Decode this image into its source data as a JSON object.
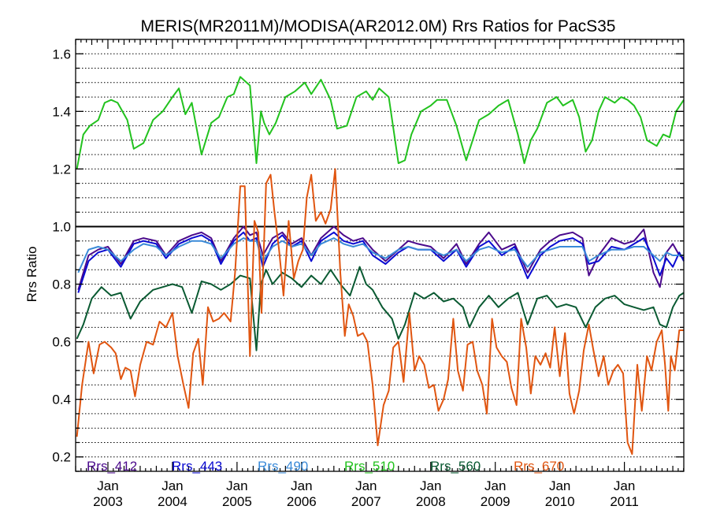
{
  "chart_data": {
    "type": "line",
    "title": "MERIS(MR2011M)/MODISA(AR2012.0M)  Rrs Ratios for PacS35",
    "ylabel": "Rrs Ratio",
    "xlabel": "",
    "ylim": [
      0.15,
      1.65
    ],
    "xlim": [
      2002.5,
      2011.92
    ],
    "y_ticks": [
      0.2,
      0.4,
      0.6,
      0.8,
      1.0,
      1.2,
      1.4,
      1.6
    ],
    "y_tick_labels": [
      "0.2",
      "0.4",
      "0.6",
      "0.8",
      "1.0",
      "1.2",
      "1.4",
      "1.6"
    ],
    "x_ticks": [
      {
        "x": 2003.0,
        "month": "Jan",
        "year": "2003"
      },
      {
        "x": 2004.0,
        "month": "Jan",
        "year": "2004"
      },
      {
        "x": 2005.0,
        "month": "Jan",
        "year": "2005"
      },
      {
        "x": 2006.0,
        "month": "Jan",
        "year": "2006"
      },
      {
        "x": 2007.0,
        "month": "Jan",
        "year": "2007"
      },
      {
        "x": 2008.0,
        "month": "Jan",
        "year": "2008"
      },
      {
        "x": 2009.0,
        "month": "Jan",
        "year": "2009"
      },
      {
        "x": 2010.0,
        "month": "Jan",
        "year": "2010"
      },
      {
        "x": 2011.0,
        "month": "Jan",
        "year": "2011"
      }
    ],
    "reference_line": 1.0,
    "grid": "horizontal dotted",
    "legend_position": "bottom inside plot",
    "series": [
      {
        "name": "Rrs_412",
        "color": "#4b0a8c",
        "x": [
          2002.54,
          2002.7,
          2002.85,
          2003.0,
          2003.2,
          2003.4,
          2003.55,
          2003.75,
          2003.9,
          2004.1,
          2004.3,
          2004.45,
          2004.6,
          2004.75,
          2004.95,
          2005.1,
          2005.2,
          2005.3,
          2005.4,
          2005.55,
          2005.7,
          2005.85,
          2006.0,
          2006.15,
          2006.3,
          2006.5,
          2006.65,
          2006.8,
          2006.95,
          2007.1,
          2007.3,
          2007.5,
          2007.65,
          2007.8,
          2008.0,
          2008.2,
          2008.4,
          2008.55,
          2008.75,
          2008.9,
          2009.1,
          2009.3,
          2009.5,
          2009.7,
          2009.85,
          2010.0,
          2010.2,
          2010.35,
          2010.45,
          2010.6,
          2010.8,
          2011.0,
          2011.15,
          2011.3,
          2011.45,
          2011.55,
          2011.65,
          2011.75,
          2011.85,
          2011.92
        ],
        "values": [
          0.78,
          0.9,
          0.92,
          0.93,
          0.87,
          0.95,
          0.96,
          0.95,
          0.9,
          0.95,
          0.97,
          0.98,
          0.96,
          0.88,
          0.96,
          1.0,
          0.97,
          0.98,
          0.9,
          0.96,
          0.98,
          0.94,
          0.96,
          0.9,
          0.96,
          1.0,
          0.97,
          0.95,
          0.96,
          0.92,
          0.88,
          0.92,
          0.95,
          0.94,
          0.93,
          0.89,
          0.94,
          0.87,
          0.94,
          0.98,
          0.92,
          0.94,
          0.84,
          0.92,
          0.95,
          0.97,
          0.98,
          0.96,
          0.83,
          0.9,
          0.96,
          0.94,
          0.95,
          0.99,
          0.84,
          0.79,
          0.91,
          0.94,
          0.9,
          0.89
        ]
      },
      {
        "name": "Rrs_443",
        "color": "#0a0ad2",
        "x": [
          2002.54,
          2002.7,
          2002.85,
          2003.0,
          2003.2,
          2003.4,
          2003.55,
          2003.75,
          2003.9,
          2004.1,
          2004.3,
          2004.45,
          2004.6,
          2004.75,
          2004.95,
          2005.1,
          2005.2,
          2005.3,
          2005.4,
          2005.55,
          2005.7,
          2005.85,
          2006.0,
          2006.15,
          2006.3,
          2006.5,
          2006.65,
          2006.8,
          2006.95,
          2007.1,
          2007.3,
          2007.5,
          2007.65,
          2007.8,
          2008.0,
          2008.2,
          2008.4,
          2008.55,
          2008.75,
          2008.9,
          2009.1,
          2009.3,
          2009.5,
          2009.7,
          2009.85,
          2010.0,
          2010.2,
          2010.35,
          2010.45,
          2010.6,
          2010.8,
          2011.0,
          2011.15,
          2011.3,
          2011.45,
          2011.55,
          2011.65,
          2011.75,
          2011.85,
          2011.92
        ],
        "values": [
          0.77,
          0.88,
          0.91,
          0.92,
          0.86,
          0.94,
          0.95,
          0.94,
          0.89,
          0.94,
          0.96,
          0.97,
          0.95,
          0.87,
          0.95,
          0.98,
          0.95,
          0.96,
          0.86,
          0.94,
          0.97,
          0.93,
          0.95,
          0.88,
          0.95,
          0.98,
          0.95,
          0.94,
          0.95,
          0.9,
          0.87,
          0.91,
          0.93,
          0.92,
          0.92,
          0.88,
          0.92,
          0.86,
          0.93,
          0.95,
          0.9,
          0.93,
          0.82,
          0.9,
          0.93,
          0.95,
          0.96,
          0.94,
          0.87,
          0.88,
          0.93,
          0.92,
          0.94,
          0.96,
          0.89,
          0.83,
          0.89,
          0.86,
          0.91,
          0.88
        ]
      },
      {
        "name": "Rrs_490",
        "color": "#3a8ad8",
        "x": [
          2002.54,
          2002.7,
          2002.85,
          2003.0,
          2003.2,
          2003.4,
          2003.55,
          2003.75,
          2003.9,
          2004.1,
          2004.3,
          2004.45,
          2004.6,
          2004.75,
          2004.95,
          2005.1,
          2005.2,
          2005.3,
          2005.4,
          2005.55,
          2005.7,
          2005.85,
          2006.0,
          2006.15,
          2006.3,
          2006.5,
          2006.65,
          2006.8,
          2006.95,
          2007.1,
          2007.3,
          2007.5,
          2007.65,
          2007.8,
          2008.0,
          2008.2,
          2008.4,
          2008.55,
          2008.75,
          2008.9,
          2009.1,
          2009.3,
          2009.5,
          2009.7,
          2009.85,
          2010.0,
          2010.2,
          2010.35,
          2010.45,
          2010.6,
          2010.8,
          2011.0,
          2011.15,
          2011.3,
          2011.45,
          2011.55,
          2011.65,
          2011.75,
          2011.85,
          2011.92
        ],
        "values": [
          0.84,
          0.92,
          0.93,
          0.92,
          0.88,
          0.92,
          0.94,
          0.93,
          0.9,
          0.93,
          0.95,
          0.95,
          0.94,
          0.89,
          0.94,
          0.96,
          0.95,
          0.95,
          0.88,
          0.93,
          0.95,
          0.93,
          0.94,
          0.9,
          0.94,
          0.96,
          0.94,
          0.93,
          0.94,
          0.91,
          0.89,
          0.92,
          0.93,
          0.92,
          0.92,
          0.9,
          0.92,
          0.88,
          0.92,
          0.93,
          0.91,
          0.92,
          0.86,
          0.91,
          0.92,
          0.93,
          0.93,
          0.93,
          0.88,
          0.9,
          0.92,
          0.92,
          0.93,
          0.93,
          0.9,
          0.88,
          0.91,
          0.9,
          0.9,
          0.9
        ]
      },
      {
        "name": "Rrs_510",
        "color": "#22c21e",
        "x": [
          2002.52,
          2002.62,
          2002.72,
          2002.85,
          2002.95,
          2003.05,
          2003.15,
          2003.3,
          2003.4,
          2003.55,
          2003.7,
          2003.85,
          2004.0,
          2004.1,
          2004.2,
          2004.3,
          2004.45,
          2004.6,
          2004.72,
          2004.85,
          2004.95,
          2005.05,
          2005.2,
          2005.3,
          2005.37,
          2005.42,
          2005.5,
          2005.6,
          2005.75,
          2005.9,
          2006.05,
          2006.15,
          2006.3,
          2006.45,
          2006.55,
          2006.7,
          2006.85,
          2007.0,
          2007.1,
          2007.2,
          2007.35,
          2007.5,
          2007.6,
          2007.7,
          2007.85,
          2008.0,
          2008.1,
          2008.25,
          2008.4,
          2008.55,
          2008.65,
          2008.75,
          2008.9,
          2009.05,
          2009.2,
          2009.35,
          2009.45,
          2009.55,
          2009.65,
          2009.8,
          2009.95,
          2010.05,
          2010.2,
          2010.3,
          2010.4,
          2010.5,
          2010.6,
          2010.7,
          2010.85,
          2010.95,
          2011.05,
          2011.15,
          2011.25,
          2011.35,
          2011.5,
          2011.6,
          2011.7,
          2011.8,
          2011.92
        ],
        "values": [
          1.2,
          1.32,
          1.35,
          1.37,
          1.43,
          1.44,
          1.43,
          1.37,
          1.27,
          1.29,
          1.37,
          1.4,
          1.45,
          1.48,
          1.39,
          1.43,
          1.25,
          1.36,
          1.38,
          1.45,
          1.46,
          1.52,
          1.49,
          1.22,
          1.4,
          1.36,
          1.32,
          1.36,
          1.45,
          1.47,
          1.5,
          1.46,
          1.51,
          1.44,
          1.34,
          1.35,
          1.45,
          1.47,
          1.44,
          1.48,
          1.45,
          1.22,
          1.23,
          1.32,
          1.4,
          1.42,
          1.44,
          1.44,
          1.35,
          1.23,
          1.3,
          1.37,
          1.39,
          1.42,
          1.44,
          1.32,
          1.22,
          1.3,
          1.34,
          1.43,
          1.45,
          1.42,
          1.44,
          1.38,
          1.26,
          1.3,
          1.4,
          1.45,
          1.43,
          1.45,
          1.44,
          1.42,
          1.38,
          1.3,
          1.28,
          1.32,
          1.31,
          1.4,
          1.44
        ]
      },
      {
        "name": "Rrs_560",
        "color": "#0a5a32",
        "x": [
          2002.52,
          2002.62,
          2002.75,
          2002.9,
          2003.05,
          2003.2,
          2003.35,
          2003.5,
          2003.7,
          2003.85,
          2004.0,
          2004.15,
          2004.3,
          2004.45,
          2004.6,
          2004.75,
          2004.9,
          2005.05,
          2005.2,
          2005.3,
          2005.37,
          2005.45,
          2005.55,
          2005.7,
          2005.85,
          2006.0,
          2006.15,
          2006.3,
          2006.45,
          2006.6,
          2006.75,
          2006.9,
          2007.0,
          2007.1,
          2007.25,
          2007.4,
          2007.5,
          2007.6,
          2007.75,
          2007.9,
          2008.05,
          2008.2,
          2008.35,
          2008.5,
          2008.6,
          2008.75,
          2008.9,
          2009.05,
          2009.2,
          2009.35,
          2009.5,
          2009.65,
          2009.8,
          2009.95,
          2010.1,
          2010.25,
          2010.4,
          2010.55,
          2010.7,
          2010.85,
          2011.0,
          2011.15,
          2011.3,
          2011.45,
          2011.55,
          2011.65,
          2011.75,
          2011.85,
          2011.92
        ],
        "values": [
          0.61,
          0.66,
          0.75,
          0.79,
          0.76,
          0.77,
          0.68,
          0.74,
          0.78,
          0.79,
          0.8,
          0.79,
          0.7,
          0.81,
          0.8,
          0.78,
          0.8,
          0.83,
          0.82,
          0.57,
          0.8,
          0.85,
          0.8,
          0.84,
          0.82,
          0.79,
          0.83,
          0.8,
          0.85,
          0.8,
          0.76,
          0.86,
          0.8,
          0.78,
          0.72,
          0.68,
          0.61,
          0.66,
          0.77,
          0.75,
          0.77,
          0.74,
          0.75,
          0.72,
          0.65,
          0.72,
          0.76,
          0.72,
          0.75,
          0.77,
          0.66,
          0.75,
          0.76,
          0.72,
          0.73,
          0.72,
          0.65,
          0.72,
          0.75,
          0.76,
          0.73,
          0.72,
          0.71,
          0.72,
          0.66,
          0.65,
          0.72,
          0.76,
          0.77
        ]
      },
      {
        "name": "Rrs_670",
        "color": "#e05510",
        "x": [
          2002.52,
          2002.6,
          2002.7,
          2002.78,
          2002.87,
          2002.95,
          2003.05,
          2003.12,
          2003.2,
          2003.27,
          2003.35,
          2003.42,
          2003.5,
          2003.6,
          2003.7,
          2003.8,
          2003.9,
          2004.0,
          2004.08,
          2004.17,
          2004.25,
          2004.32,
          2004.4,
          2004.47,
          2004.55,
          2004.63,
          2004.72,
          2004.8,
          2004.9,
          2004.97,
          2005.05,
          2005.12,
          2005.2,
          2005.27,
          2005.33,
          2005.38,
          2005.45,
          2005.52,
          2005.58,
          2005.65,
          2005.72,
          2005.8,
          2005.88,
          2005.95,
          2006.02,
          2006.08,
          2006.15,
          2006.22,
          2006.3,
          2006.37,
          2006.45,
          2006.52,
          2006.6,
          2006.67,
          2006.73,
          2006.8,
          2006.87,
          2006.95,
          2007.02,
          2007.1,
          2007.18,
          2007.27,
          2007.35,
          2007.42,
          2007.5,
          2007.58,
          2007.67,
          2007.75,
          2007.82,
          2007.9,
          2007.97,
          2008.05,
          2008.12,
          2008.2,
          2008.27,
          2008.35,
          2008.42,
          2008.5,
          2008.57,
          2008.65,
          2008.72,
          2008.8,
          2008.87,
          2008.95,
          2009.02,
          2009.1,
          2009.18,
          2009.25,
          2009.33,
          2009.4,
          2009.48,
          2009.55,
          2009.62,
          2009.7,
          2009.78,
          2009.85,
          2009.92,
          2010.0,
          2010.08,
          2010.15,
          2010.22,
          2010.3,
          2010.37,
          2010.45,
          2010.52,
          2010.6,
          2010.68,
          2010.75,
          2010.83,
          2010.9,
          2010.98,
          2011.05,
          2011.12,
          2011.2,
          2011.27,
          2011.35,
          2011.42,
          2011.5,
          2011.58,
          2011.63,
          2011.68,
          2011.72,
          2011.78,
          2011.85,
          2011.92
        ],
        "values": [
          0.27,
          0.45,
          0.6,
          0.49,
          0.59,
          0.6,
          0.58,
          0.56,
          0.47,
          0.51,
          0.5,
          0.41,
          0.52,
          0.6,
          0.59,
          0.67,
          0.65,
          0.7,
          0.55,
          0.45,
          0.37,
          0.56,
          0.61,
          0.45,
          0.72,
          0.67,
          0.68,
          0.7,
          0.67,
          0.84,
          1.14,
          1.14,
          0.55,
          1.02,
          0.98,
          0.7,
          1.15,
          1.18,
          1.05,
          0.92,
          0.76,
          1.02,
          0.82,
          0.88,
          0.92,
          1.1,
          1.18,
          1.02,
          1.05,
          1.01,
          1.06,
          1.2,
          0.84,
          0.62,
          0.73,
          0.69,
          0.62,
          0.63,
          0.6,
          0.45,
          0.24,
          0.38,
          0.43,
          0.58,
          0.6,
          0.46,
          0.7,
          0.5,
          0.55,
          0.52,
          0.44,
          0.45,
          0.36,
          0.4,
          0.47,
          0.68,
          0.5,
          0.43,
          0.59,
          0.6,
          0.5,
          0.45,
          0.35,
          0.68,
          0.58,
          0.55,
          0.53,
          0.44,
          0.38,
          0.68,
          0.58,
          0.42,
          0.55,
          0.52,
          0.56,
          0.51,
          0.65,
          0.48,
          0.63,
          0.42,
          0.35,
          0.43,
          0.57,
          0.66,
          0.57,
          0.48,
          0.55,
          0.45,
          0.5,
          0.52,
          0.49,
          0.25,
          0.21,
          0.52,
          0.36,
          0.55,
          0.5,
          0.6,
          0.64,
          0.52,
          0.36,
          0.55,
          0.5,
          0.64,
          0.64
        ]
      }
    ]
  }
}
